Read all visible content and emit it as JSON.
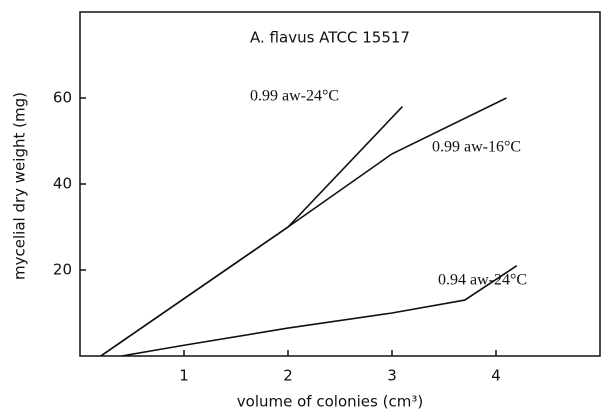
{
  "chart_data": {
    "type": "line",
    "title": "A. flavus ATCC 15517",
    "x_label": "volume of colonies (cm³)",
    "y_label": "mycelial dry weight (mg)",
    "xlim": [
      0,
      5
    ],
    "ylim": [
      0,
      80
    ],
    "xticks": [
      1,
      2,
      3,
      4
    ],
    "yticks": [
      20,
      40,
      60
    ],
    "series": [
      {
        "name": "0.99 aw-24°C",
        "color": "#111111",
        "x": [
          0.2,
          2,
          3.1
        ],
        "values": [
          0,
          30,
          58
        ]
      },
      {
        "name": "0.99 aw-16°C",
        "color": "#111111",
        "x": [
          0.2,
          2,
          3,
          4.1
        ],
        "values": [
          0,
          30,
          47,
          60
        ]
      },
      {
        "name": "0.94 aw-24°C",
        "color": "#111111",
        "x": [
          0.4,
          1,
          2,
          3,
          3.7,
          4.2
        ],
        "values": [
          0,
          2.5,
          6.5,
          10,
          13,
          21
        ]
      }
    ]
  }
}
